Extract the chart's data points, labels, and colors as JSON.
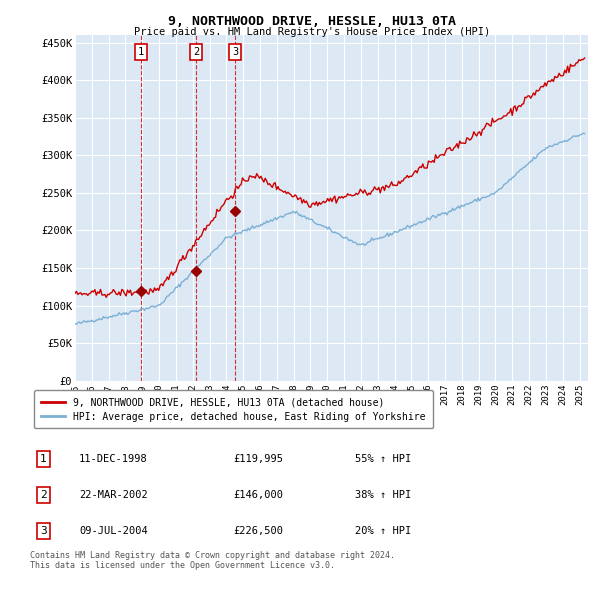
{
  "title": "9, NORTHWOOD DRIVE, HESSLE, HU13 0TA",
  "subtitle": "Price paid vs. HM Land Registry's House Price Index (HPI)",
  "ylim": [
    0,
    460000
  ],
  "xlim_start": 1995.0,
  "xlim_end": 2025.5,
  "yticks": [
    0,
    50000,
    100000,
    150000,
    200000,
    250000,
    300000,
    350000,
    400000,
    450000
  ],
  "ytick_labels": [
    "£0",
    "£50K",
    "£100K",
    "£150K",
    "£200K",
    "£250K",
    "£300K",
    "£350K",
    "£400K",
    "£450K"
  ],
  "bg_color": "#dce9f5",
  "grid_color": "#ffffff",
  "red_line_color": "#cc0000",
  "blue_line_color": "#7bafd4",
  "sale_dates_decimal": [
    1998.94,
    2002.22,
    2004.52
  ],
  "sale_prices": [
    119995,
    146000,
    226500
  ],
  "sale_labels": [
    "1",
    "2",
    "3"
  ],
  "vline_color": "#cc0000",
  "legend_red_label": "9, NORTHWOOD DRIVE, HESSLE, HU13 0TA (detached house)",
  "legend_blue_label": "HPI: Average price, detached house, East Riding of Yorkshire",
  "table_data": [
    [
      "1",
      "11-DEC-1998",
      "£119,995",
      "55% ↑ HPI"
    ],
    [
      "2",
      "22-MAR-2002",
      "£146,000",
      "38% ↑ HPI"
    ],
    [
      "3",
      "09-JUL-2004",
      "£226,500",
      "20% ↑ HPI"
    ]
  ],
  "footer_text": "Contains HM Land Registry data © Crown copyright and database right 2024.\nThis data is licensed under the Open Government Licence v3.0.",
  "xtick_years": [
    1995,
    1996,
    1997,
    1998,
    1999,
    2000,
    2001,
    2002,
    2003,
    2004,
    2005,
    2006,
    2007,
    2008,
    2009,
    2010,
    2011,
    2012,
    2013,
    2014,
    2015,
    2016,
    2017,
    2018,
    2019,
    2020,
    2021,
    2022,
    2023,
    2024,
    2025
  ]
}
